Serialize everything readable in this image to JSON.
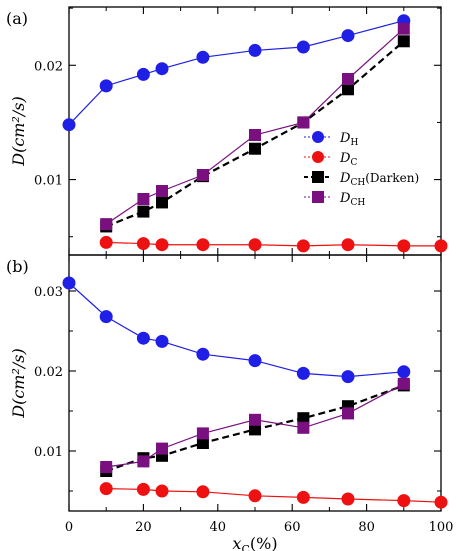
{
  "chart_data": [
    {
      "type": "line",
      "panel_label": "(a)",
      "ylabel": "D(cm²/s)",
      "xlabel": "",
      "xlim": [
        0,
        100
      ],
      "ylim": [
        0.0034,
        0.0251
      ],
      "yticks": [
        0.01,
        0.02
      ],
      "ytick_labels": [
        "0.01",
        "0.02"
      ],
      "xticks": [
        0,
        20,
        40,
        60,
        80,
        100
      ],
      "xtick_labels": [],
      "legend": {
        "position": "right"
      },
      "series": [
        {
          "name": "D_H",
          "label_main": "D",
          "label_sub": "H",
          "color": "#1f1fe6",
          "marker": "circle",
          "line": "solid",
          "x": [
            0,
            10,
            20,
            25,
            36,
            50,
            63,
            75,
            90
          ],
          "y": [
            0.0148,
            0.0182,
            0.0192,
            0.0197,
            0.0207,
            0.0213,
            0.0216,
            0.0226,
            0.0239
          ]
        },
        {
          "name": "D_C",
          "label_main": "D",
          "label_sub": "C",
          "color": "#ee1111",
          "marker": "circle",
          "line": "solid",
          "x": [
            10,
            20,
            25,
            36,
            50,
            63,
            75,
            90,
            100
          ],
          "y": [
            0.0045,
            0.0044,
            0.0043,
            0.0043,
            0.0043,
            0.0042,
            0.0043,
            0.0042,
            0.0042
          ]
        },
        {
          "name": "D_CH(Darken)",
          "label_main": "D",
          "label_sub": "CH",
          "label_suffix": "(Darken)",
          "color": "#000000",
          "marker": "square",
          "line": "dashed",
          "x": [
            10,
            20,
            25,
            36,
            50,
            63,
            75,
            90
          ],
          "y": [
            0.0059,
            0.0072,
            0.008,
            0.0103,
            0.0127,
            0.015,
            0.0179,
            0.0221
          ]
        },
        {
          "name": "D_CH",
          "label_main": "D",
          "label_sub": "CH",
          "color": "#7a1080",
          "marker": "square",
          "line": "solid",
          "x": [
            10,
            20,
            25,
            36,
            50,
            63,
            75,
            90
          ],
          "y": [
            0.0061,
            0.0083,
            0.009,
            0.0104,
            0.0139,
            0.015,
            0.0188,
            0.0232
          ]
        }
      ]
    },
    {
      "type": "line",
      "panel_label": "(b)",
      "ylabel": "D(cm²/s)",
      "xlabel": "x_C(%)",
      "xlabel_main": "x",
      "xlabel_sub": "C",
      "xlabel_suffix": "(%)",
      "xlim": [
        0,
        100
      ],
      "ylim": [
        0.0025,
        0.0345
      ],
      "yticks": [
        0.01,
        0.02,
        0.03
      ],
      "ytick_labels": [
        "0.01",
        "0.02",
        "0.03"
      ],
      "xticks": [
        0,
        20,
        40,
        60,
        80,
        100
      ],
      "xtick_labels": [
        "0",
        "20",
        "40",
        "60",
        "80",
        "100"
      ],
      "series": [
        {
          "name": "D_H",
          "color": "#1f1fe6",
          "marker": "circle",
          "line": "solid",
          "x": [
            0,
            10,
            20,
            25,
            36,
            50,
            63,
            75,
            90
          ],
          "y": [
            0.031,
            0.0268,
            0.0241,
            0.0237,
            0.0221,
            0.0213,
            0.0197,
            0.0193,
            0.0199
          ]
        },
        {
          "name": "D_C",
          "color": "#ee1111",
          "marker": "circle",
          "line": "solid",
          "x": [
            10,
            20,
            25,
            36,
            50,
            63,
            75,
            90,
            100
          ],
          "y": [
            0.0053,
            0.0052,
            0.005,
            0.0049,
            0.0044,
            0.0042,
            0.004,
            0.0038,
            0.0036
          ]
        },
        {
          "name": "D_CH(Darken)",
          "color": "#000000",
          "marker": "square",
          "line": "dashed",
          "x": [
            10,
            20,
            25,
            36,
            50,
            63,
            75,
            90
          ],
          "y": [
            0.0075,
            0.0091,
            0.0094,
            0.011,
            0.0127,
            0.0141,
            0.0156,
            0.0182
          ]
        },
        {
          "name": "D_CH",
          "color": "#7a1080",
          "marker": "square",
          "line": "solid",
          "x": [
            10,
            20,
            25,
            36,
            50,
            63,
            75,
            90
          ],
          "y": [
            0.008,
            0.0087,
            0.0103,
            0.0122,
            0.0139,
            0.0129,
            0.0147,
            0.0184
          ]
        }
      ]
    }
  ]
}
